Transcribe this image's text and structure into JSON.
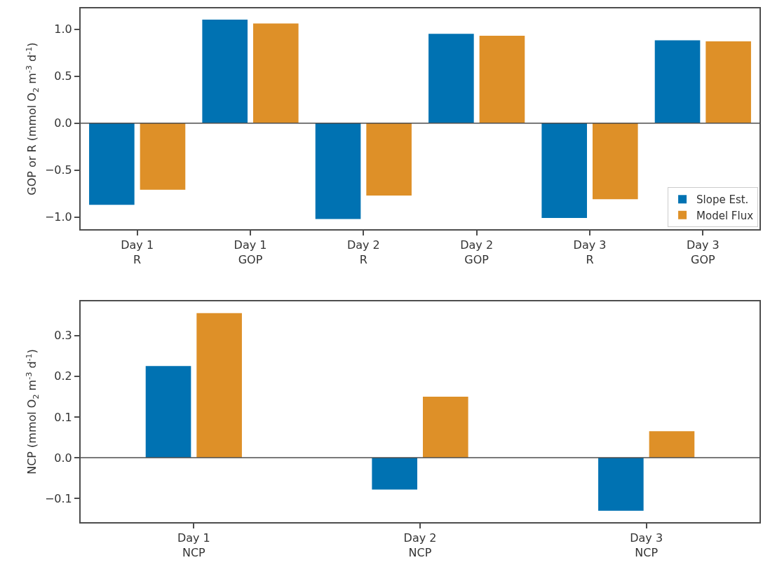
{
  "chart_data": [
    {
      "type": "bar",
      "categories": [
        "Day 1\nR",
        "Day 1\nGOP",
        "Day 2\nR",
        "Day 2\nGOP",
        "Day 3\nR",
        "Day 3\nGOP"
      ],
      "ylabel": "GOP or R (mmol O$_{2}$ m$^{-3}$ d$^{-1}$)",
      "series": [
        {
          "name": "Slope Est.",
          "color": "#0072b2",
          "values": [
            -0.87,
            1.1,
            -1.02,
            0.95,
            -1.01,
            0.88
          ]
        },
        {
          "name": "Model Flux",
          "color": "#de9028",
          "values": [
            -0.71,
            1.06,
            -0.77,
            0.93,
            -0.81,
            0.87
          ]
        }
      ],
      "ylim": [
        -1.13,
        1.22
      ],
      "yticks": [
        {
          "value": -1.0,
          "label": "−1.0"
        },
        {
          "value": -0.5,
          "label": "−0.5"
        },
        {
          "value": 0.0,
          "label": "0.0"
        },
        {
          "value": 0.5,
          "label": "0.5"
        },
        {
          "value": 1.0,
          "label": "1.0"
        }
      ],
      "ref_lines": [
        {
          "axis": "y",
          "value": 0,
          "color": "#4d4d4d"
        }
      ],
      "legend": "bottom right"
    },
    {
      "type": "bar",
      "categories": [
        "Day 1\nNCP",
        "Day 2\nNCP",
        "Day 3\nNCP"
      ],
      "ylabel": "NCP (mmol O$_{2}$ m$^{-3}$ d$^{-1}$)",
      "series": [
        {
          "color": "#0072b2",
          "values": [
            0.225,
            -0.078,
            -0.13
          ]
        },
        {
          "color": "#de9028",
          "values": [
            0.355,
            0.15,
            0.065
          ]
        }
      ],
      "ylim": [
        -0.158,
        0.384
      ],
      "yticks": [
        {
          "value": -0.1,
          "label": "−0.1"
        },
        {
          "value": 0.0,
          "label": "0.0"
        },
        {
          "value": 0.1,
          "label": "0.1"
        },
        {
          "value": 0.2,
          "label": "0.2"
        },
        {
          "value": 0.3,
          "label": "0.3"
        }
      ],
      "ref_lines": [
        {
          "axis": "y",
          "value": 0,
          "color": "#4d4d4d"
        }
      ],
      "legend": false
    }
  ]
}
